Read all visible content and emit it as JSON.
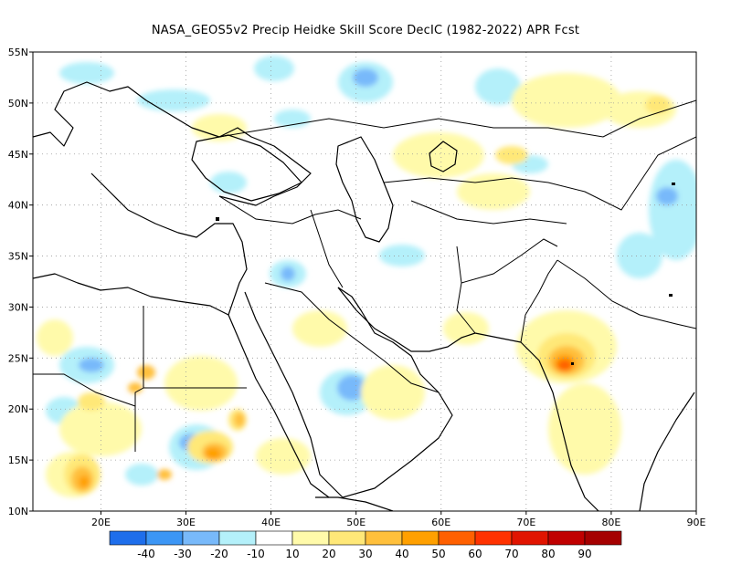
{
  "title": "NASA_GEOS5v2 Precip Heidke Skill Score DecIC (1982-2022) APR Fcst",
  "map": {
    "lon_range": [
      12,
      90
    ],
    "lat_range": [
      10,
      55
    ],
    "lat_labels": [
      "55N",
      "50N",
      "45N",
      "40N",
      "35N",
      "30N",
      "25N",
      "20N",
      "15N",
      "10N"
    ],
    "lon_labels": [
      "20E",
      "30E",
      "40E",
      "50E",
      "60E",
      "70E",
      "80E",
      "90E"
    ],
    "gridlines": true
  },
  "colorbar": {
    "colors": [
      "#1e6eeb",
      "#3c96f5",
      "#78b9fa",
      "#b4f0fa",
      "#ffffff",
      "#fffaaa",
      "#ffe878",
      "#ffc03c",
      "#ffa000",
      "#ff6000",
      "#ff3200",
      "#e11400",
      "#c00000",
      "#a50000"
    ],
    "labels": [
      "-40",
      "-30",
      "-20",
      "-10",
      "10",
      "20",
      "30",
      "40",
      "50",
      "60",
      "70",
      "80",
      "90"
    ]
  },
  "skill_regions": [
    {
      "region": "India central",
      "lon": 75,
      "lat": 24,
      "level": 60
    },
    {
      "region": "Sudan",
      "lon": 33,
      "lat": 15,
      "level": 50
    },
    {
      "region": "Chad",
      "lon": 17,
      "lat": 13,
      "level": 40
    },
    {
      "region": "Saudi Arabia",
      "lon": 50,
      "lat": 22.5,
      "level": -20
    },
    {
      "region": "Sudan west",
      "lon": 31,
      "lat": 16.5,
      "level": -20
    },
    {
      "region": "Libya south",
      "lon": 19,
      "lat": 24,
      "level": -20
    },
    {
      "region": "Central Asia",
      "lon": 85,
      "lat": 40,
      "level": -20
    }
  ]
}
